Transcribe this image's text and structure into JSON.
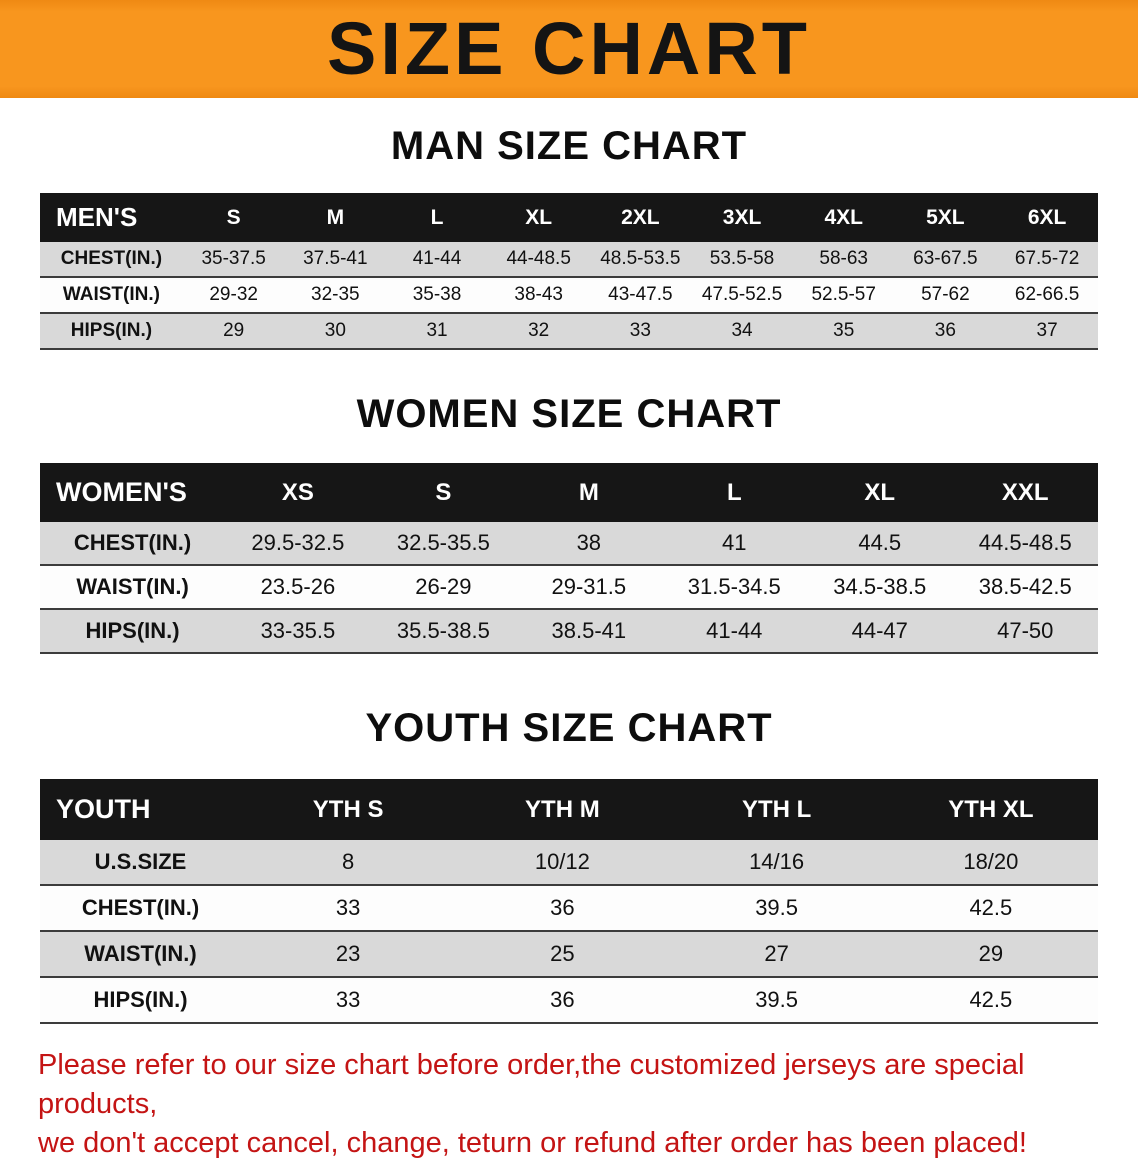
{
  "banner": {
    "title": "SIZE CHART",
    "bg_color": "#f8961e",
    "text_color": "#141414"
  },
  "colors": {
    "table_header_bg": "#161616",
    "row_stripe_gray": "#d9d9d9",
    "disclaimer_red": "#c41414"
  },
  "sections": [
    {
      "heading": "MAN SIZE CHART",
      "table": {
        "header": [
          "MEN'S",
          "S",
          "M",
          "L",
          "XL",
          "2XL",
          "3XL",
          "4XL",
          "5XL",
          "6XL"
        ],
        "rows": [
          [
            "CHEST(IN.)",
            "35-37.5",
            "37.5-41",
            "41-44",
            "44-48.5",
            "48.5-53.5",
            "53.5-58",
            "58-63",
            "63-67.5",
            "67.5-72"
          ],
          [
            "WAIST(IN.)",
            "29-32",
            "32-35",
            "35-38",
            "38-43",
            "43-47.5",
            "47.5-52.5",
            "52.5-57",
            "57-62",
            "62-66.5"
          ],
          [
            "HIPS(IN.)",
            "29",
            "30",
            "31",
            "32",
            "33",
            "34",
            "35",
            "36",
            "37"
          ]
        ]
      }
    },
    {
      "heading": "WOMEN SIZE CHART",
      "table": {
        "header": [
          "WOMEN'S",
          "XS",
          "S",
          "M",
          "L",
          "XL",
          "XXL"
        ],
        "rows": [
          [
            "CHEST(IN.)",
            "29.5-32.5",
            "32.5-35.5",
            "38",
            "41",
            "44.5",
            "44.5-48.5"
          ],
          [
            "WAIST(IN.)",
            "23.5-26",
            "26-29",
            "29-31.5",
            "31.5-34.5",
            "34.5-38.5",
            "38.5-42.5"
          ],
          [
            "HIPS(IN.)",
            "33-35.5",
            "35.5-38.5",
            "38.5-41",
            "41-44",
            "44-47",
            "47-50"
          ]
        ]
      }
    },
    {
      "heading": "YOUTH SIZE CHART",
      "table": {
        "header": [
          "YOUTH",
          "YTH S",
          "YTH M",
          "YTH L",
          "YTH XL"
        ],
        "rows": [
          [
            "U.S.SIZE",
            "8",
            "10/12",
            "14/16",
            "18/20"
          ],
          [
            "CHEST(IN.)",
            "33",
            "36",
            "39.5",
            "42.5"
          ],
          [
            "WAIST(IN.)",
            "23",
            "25",
            "27",
            "29"
          ],
          [
            "HIPS(IN.)",
            "33",
            "36",
            "39.5",
            "42.5"
          ]
        ]
      }
    }
  ],
  "disclaimer": {
    "line1": "Please refer to our size chart before order,the customized jerseys are special products,",
    "line2": "we don't accept cancel, change, teturn or refund after order has been placed!"
  }
}
